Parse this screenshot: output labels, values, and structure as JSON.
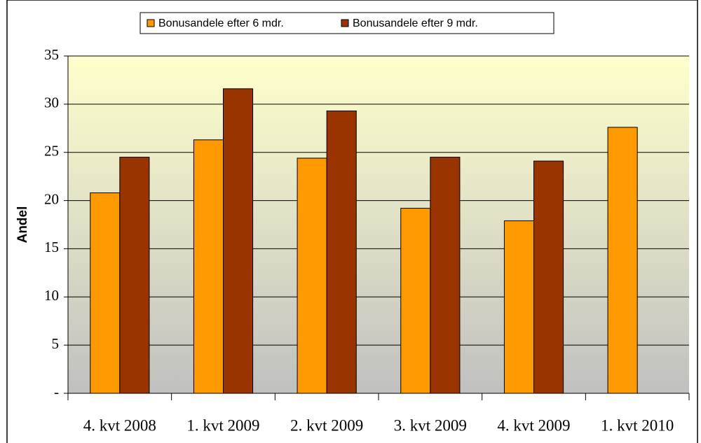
{
  "chart_data": {
    "type": "bar",
    "y_label": "Andel",
    "categories": [
      "4. kvt 2008",
      "1. kvt 2009",
      "2. kvt 2009",
      "3. kvt 2009",
      "4. kvt 2009",
      "1. kvt 2010"
    ],
    "series": [
      {
        "name": "Bonusandele efter 6 mdr.",
        "color": "#ff9900",
        "values": [
          20.8,
          26.3,
          24.4,
          19.2,
          17.9,
          27.6
        ]
      },
      {
        "name": "Bonusandele efter 9 mdr.",
        "color": "#993300",
        "values": [
          24.5,
          31.6,
          29.3,
          24.5,
          24.1,
          null
        ]
      }
    ],
    "ylim": [
      0,
      35
    ],
    "yticks": [
      {
        "value": 0,
        "label": "-"
      },
      5,
      10,
      15,
      20,
      25,
      30,
      35
    ],
    "grid": true,
    "legend": "top"
  }
}
